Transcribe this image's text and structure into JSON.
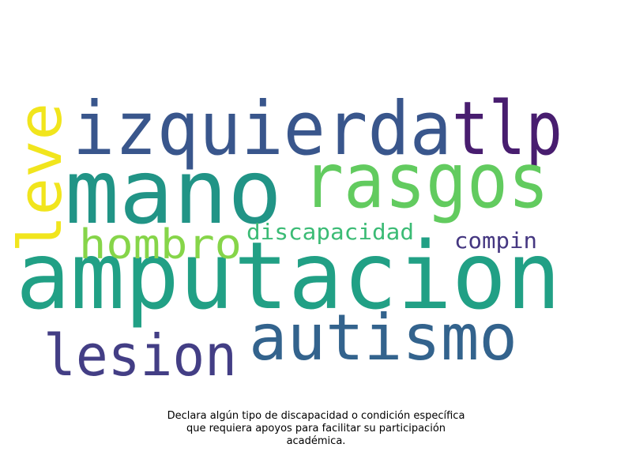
{
  "chart_data": {
    "type": "wordcloud",
    "words": [
      {
        "text": "amputacion",
        "color": "#21a085"
      },
      {
        "text": "mano",
        "color": "#219486"
      },
      {
        "text": "izquierda",
        "color": "#39568c"
      },
      {
        "text": "tlp",
        "color": "#481d6f"
      },
      {
        "text": "rasgos",
        "color": "#62cb5f"
      },
      {
        "text": "leve",
        "color": "#f1e51d"
      },
      {
        "text": "autismo",
        "color": "#33638d"
      },
      {
        "text": "lesion",
        "color": "#433e85"
      },
      {
        "text": "hombro",
        "color": "#86d549"
      },
      {
        "text": "discapacidad",
        "color": "#3bbb75"
      },
      {
        "text": "compin",
        "color": "#453781"
      }
    ]
  },
  "caption": {
    "line1": "Declara algún tipo de discapacidad o condición específica",
    "line2": "que requiera apoyos para facilitar su participación",
    "line3": "académica."
  }
}
